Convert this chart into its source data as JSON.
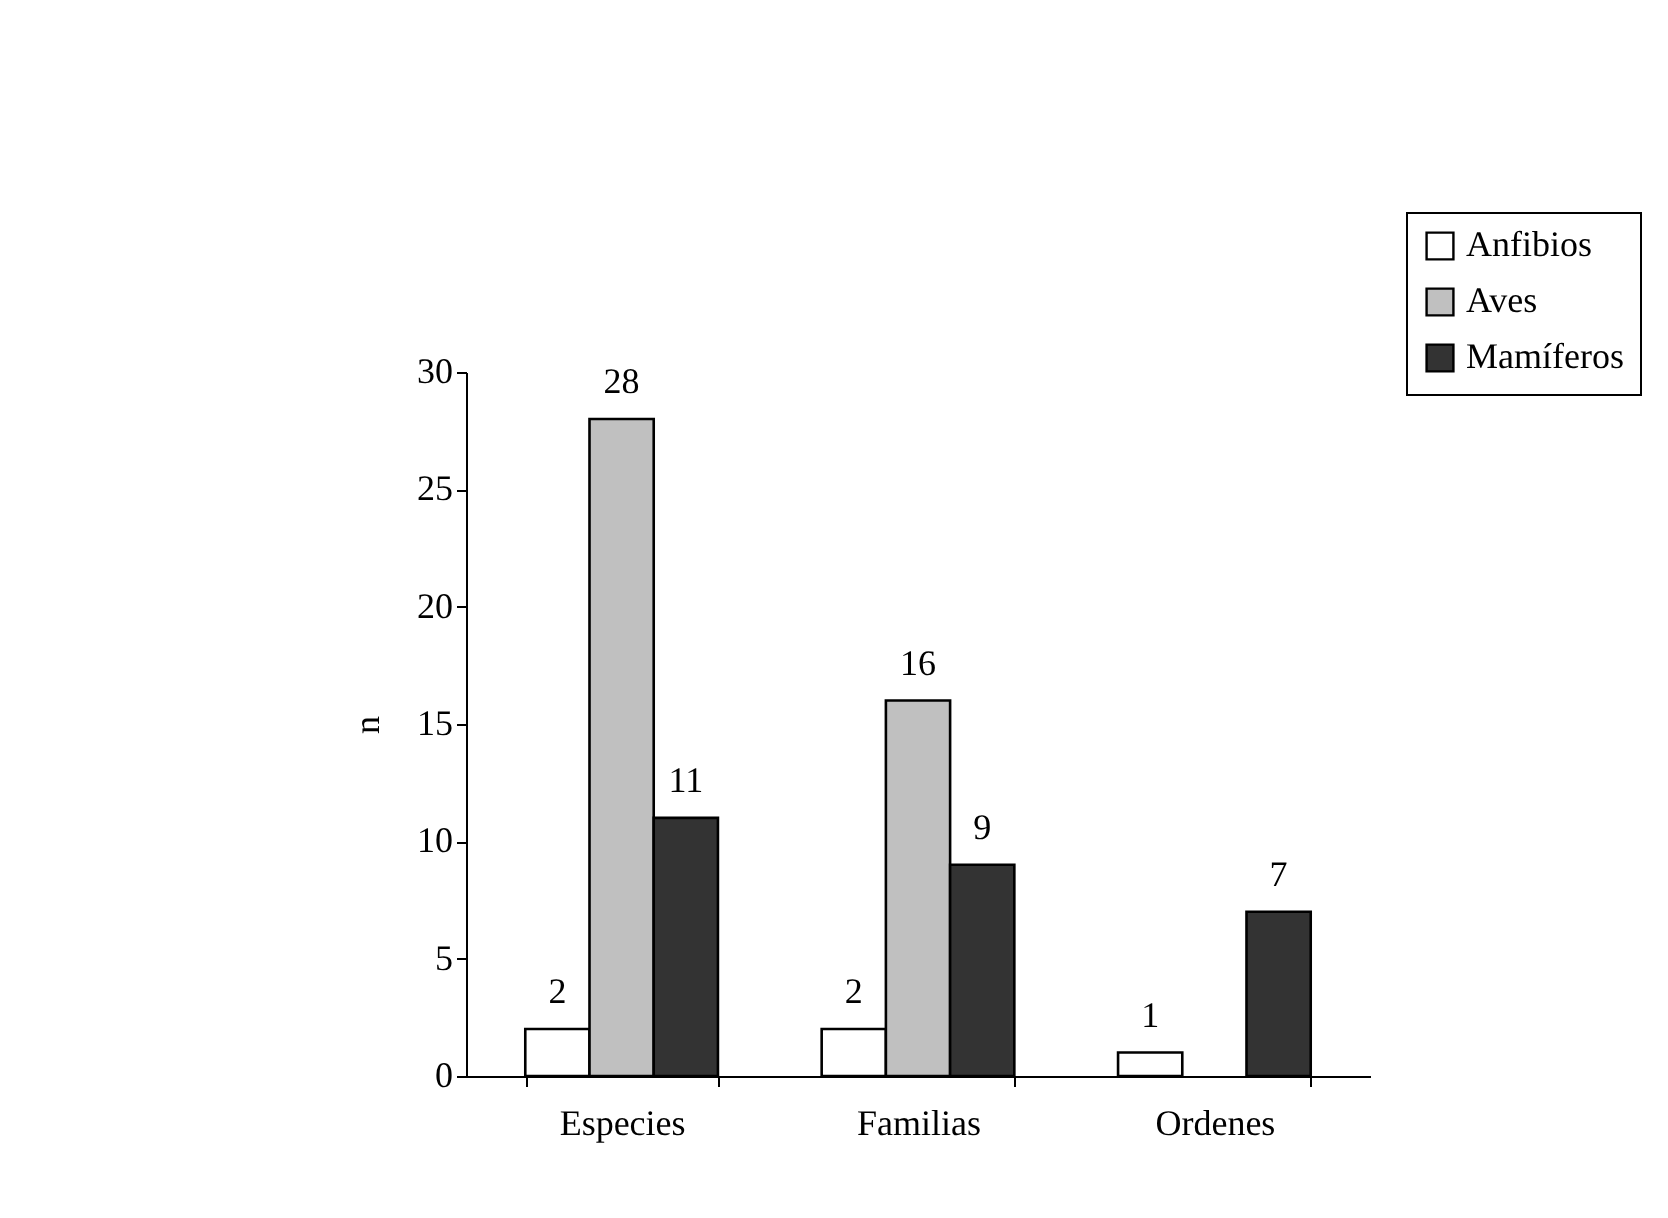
{
  "chart_data": {
    "type": "bar",
    "ylabel": "n",
    "categories": [
      "Especies",
      "Familias",
      "Ordenes"
    ],
    "series": [
      {
        "name": "Anfibios",
        "color": "#ffffff",
        "values": [
          2,
          2,
          1
        ]
      },
      {
        "name": "Aves",
        "color": "#c0c0c0",
        "values": [
          28,
          16,
          null
        ]
      },
      {
        "name": "Mamíferos",
        "color": "#333333",
        "values": [
          11,
          9,
          7
        ]
      }
    ],
    "ylim": [
      0,
      30
    ],
    "yticks": [
      0,
      5,
      10,
      15,
      20,
      25,
      30
    ],
    "grid": false,
    "legend": "top right",
    "data_labels": true
  }
}
